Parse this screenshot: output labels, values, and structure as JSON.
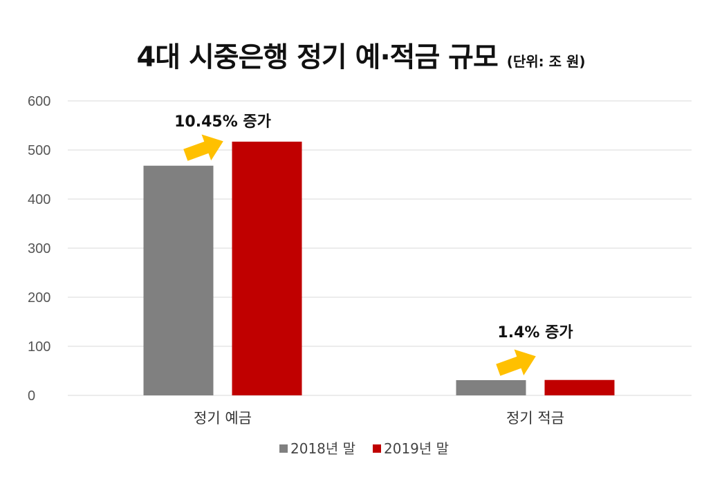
{
  "title": "4대 시중은행 정기 예·적금 규모",
  "unit": "(단위: 조 원)",
  "chart_data": {
    "type": "bar",
    "title": "4대 시중은행 정기 예·적금 규모",
    "unit": "(단위: 조 원)",
    "categories": [
      "정기 예금",
      "정기 적금"
    ],
    "series": [
      {
        "name": "2018년 말",
        "color": "#808080",
        "values": [
          468,
          31.0
        ]
      },
      {
        "name": "2019년 말",
        "color": "#C00000",
        "values": [
          517,
          31.4
        ]
      }
    ],
    "ylim": [
      0,
      600
    ],
    "yticks": [
      "0",
      "100",
      "200",
      "300",
      "400",
      "500",
      "600"
    ],
    "grid": true,
    "legend": "bottom",
    "annotations": [
      "10.45% 증가",
      "1.4% 증가"
    ],
    "arrow_color": "#FFC000"
  }
}
